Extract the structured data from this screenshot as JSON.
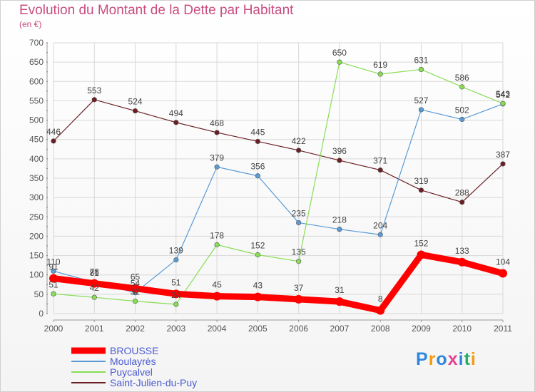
{
  "header": {
    "title": "Evolution du Montant de la Dette par Habitant",
    "subtitle": "(en €)"
  },
  "logo": {
    "text": "Proxiti"
  },
  "colors": {
    "BROUSSE": "#ff0000",
    "Moulayrès": "#5b9bd5",
    "Puycalvel": "#88dd55",
    "Saint-Julien-du-Puy": "#6b1f25"
  },
  "chart_data": {
    "type": "line",
    "title": "Evolution du Montant de la Dette par Habitant",
    "ylabel": "(en €)",
    "xlabel": "",
    "x": [
      "2000",
      "2001",
      "2002",
      "2003",
      "2004",
      "2005",
      "2006",
      "2007",
      "2008",
      "2009",
      "2010",
      "2011"
    ],
    "ylim": [
      0,
      700
    ],
    "yticks": [
      0,
      50,
      100,
      150,
      200,
      250,
      300,
      350,
      400,
      450,
      500,
      550,
      600,
      650,
      700
    ],
    "grid": true,
    "legend": "bottom-left",
    "series": [
      {
        "name": "BROUSSE",
        "values": [
          91,
          78,
          65,
          51,
          45,
          43,
          37,
          31,
          8,
          152,
          133,
          104
        ]
      },
      {
        "name": "Moulayrès",
        "values": [
          110,
          81,
          54,
          139,
          379,
          356,
          235,
          218,
          204,
          527,
          502,
          542
        ]
      },
      {
        "name": "Puycalvel",
        "values": [
          51,
          42,
          32,
          24,
          178,
          152,
          135,
          650,
          619,
          631,
          586,
          543
        ]
      },
      {
        "name": "Saint-Julien-du-Puy",
        "values": [
          446,
          553,
          524,
          494,
          468,
          445,
          422,
          396,
          371,
          319,
          288,
          387
        ]
      }
    ]
  }
}
